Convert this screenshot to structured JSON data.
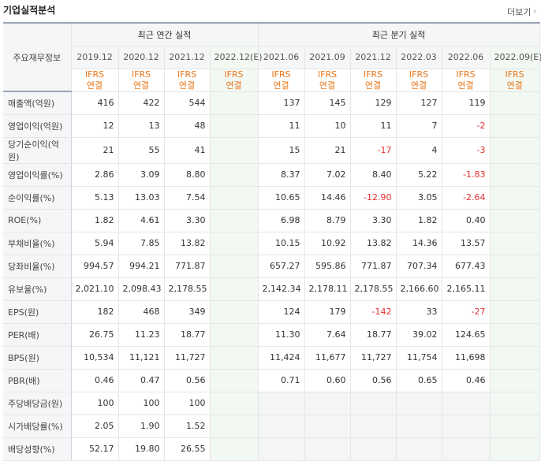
{
  "title": "기업실적분석",
  "more_label": "더보기",
  "corner_label": "주요재무정보",
  "annual_group": "최근 연간 실적",
  "quarter_group": "최근 분기 실적",
  "annual_periods": [
    "2019.12",
    "2020.12",
    "2021.12",
    "2022.12(E)"
  ],
  "quarter_periods": [
    "2021.06",
    "2021.09",
    "2021.12",
    "2022.03",
    "2022.06",
    "2022.09(E)"
  ],
  "basis_top": "IFRS",
  "basis_bottom": "연결",
  "rows": [
    {
      "label": "매출액(억원)",
      "annual": [
        "416",
        "422",
        "544",
        ""
      ],
      "quarter": [
        "137",
        "145",
        "129",
        "127",
        "119",
        ""
      ]
    },
    {
      "label": "영업이익(억원)",
      "annual": [
        "12",
        "13",
        "48",
        ""
      ],
      "quarter": [
        "11",
        "10",
        "11",
        "7",
        "-2",
        ""
      ]
    },
    {
      "label": "당기순이익(억원)",
      "annual": [
        "21",
        "55",
        "41",
        ""
      ],
      "quarter": [
        "15",
        "21",
        "-17",
        "4",
        "-3",
        ""
      ]
    },
    {
      "label": "영업이익률(%)",
      "annual": [
        "2.86",
        "3.09",
        "8.80",
        ""
      ],
      "quarter": [
        "8.37",
        "7.02",
        "8.40",
        "5.22",
        "-1.83",
        ""
      ]
    },
    {
      "label": "순이익률(%)",
      "annual": [
        "5.13",
        "13.03",
        "7.54",
        ""
      ],
      "quarter": [
        "10.65",
        "14.46",
        "-12.90",
        "3.05",
        "-2.64",
        ""
      ]
    },
    {
      "label": "ROE(%)",
      "annual": [
        "1.82",
        "4.61",
        "3.30",
        ""
      ],
      "quarter": [
        "6.98",
        "8.79",
        "3.30",
        "1.82",
        "0.40",
        ""
      ]
    },
    {
      "label": "부채비율(%)",
      "annual": [
        "5.94",
        "7.85",
        "13.82",
        ""
      ],
      "quarter": [
        "10.15",
        "10.92",
        "13.82",
        "14.36",
        "13.57",
        ""
      ]
    },
    {
      "label": "당좌비율(%)",
      "annual": [
        "994.57",
        "994.21",
        "771.87",
        ""
      ],
      "quarter": [
        "657.27",
        "595.86",
        "771.87",
        "707.34",
        "677.43",
        ""
      ]
    },
    {
      "label": "유보율(%)",
      "annual": [
        "2,021.10",
        "2,098.43",
        "2,178.55",
        ""
      ],
      "quarter": [
        "2,142.34",
        "2,178.11",
        "2,178.55",
        "2,166.60",
        "2,165.11",
        ""
      ]
    },
    {
      "label": "EPS(원)",
      "annual": [
        "182",
        "468",
        "349",
        ""
      ],
      "quarter": [
        "124",
        "179",
        "-142",
        "33",
        "-27",
        ""
      ]
    },
    {
      "label": "PER(배)",
      "annual": [
        "26.75",
        "11.23",
        "18.77",
        ""
      ],
      "quarter": [
        "11.30",
        "7.64",
        "18.77",
        "39.02",
        "124.65",
        ""
      ]
    },
    {
      "label": "BPS(원)",
      "annual": [
        "10,534",
        "11,121",
        "11,727",
        ""
      ],
      "quarter": [
        "11,424",
        "11,677",
        "11,727",
        "11,754",
        "11,698",
        ""
      ]
    },
    {
      "label": "PBR(배)",
      "annual": [
        "0.46",
        "0.47",
        "0.56",
        ""
      ],
      "quarter": [
        "0.71",
        "0.60",
        "0.56",
        "0.65",
        "0.46",
        ""
      ]
    },
    {
      "label": "주당배당금(원)",
      "annual": [
        "100",
        "100",
        "100",
        ""
      ],
      "quarter": [
        "",
        "",
        "",
        "",
        "",
        ""
      ]
    },
    {
      "label": "시가배당률(%)",
      "annual": [
        "2.05",
        "1.90",
        "1.52",
        ""
      ],
      "quarter": [
        "",
        "",
        "",
        "",
        "",
        ""
      ]
    },
    {
      "label": "배당성향(%)",
      "annual": [
        "52.17",
        "19.80",
        "26.55",
        ""
      ],
      "quarter": [
        "",
        "",
        "",
        "",
        "",
        ""
      ]
    }
  ]
}
